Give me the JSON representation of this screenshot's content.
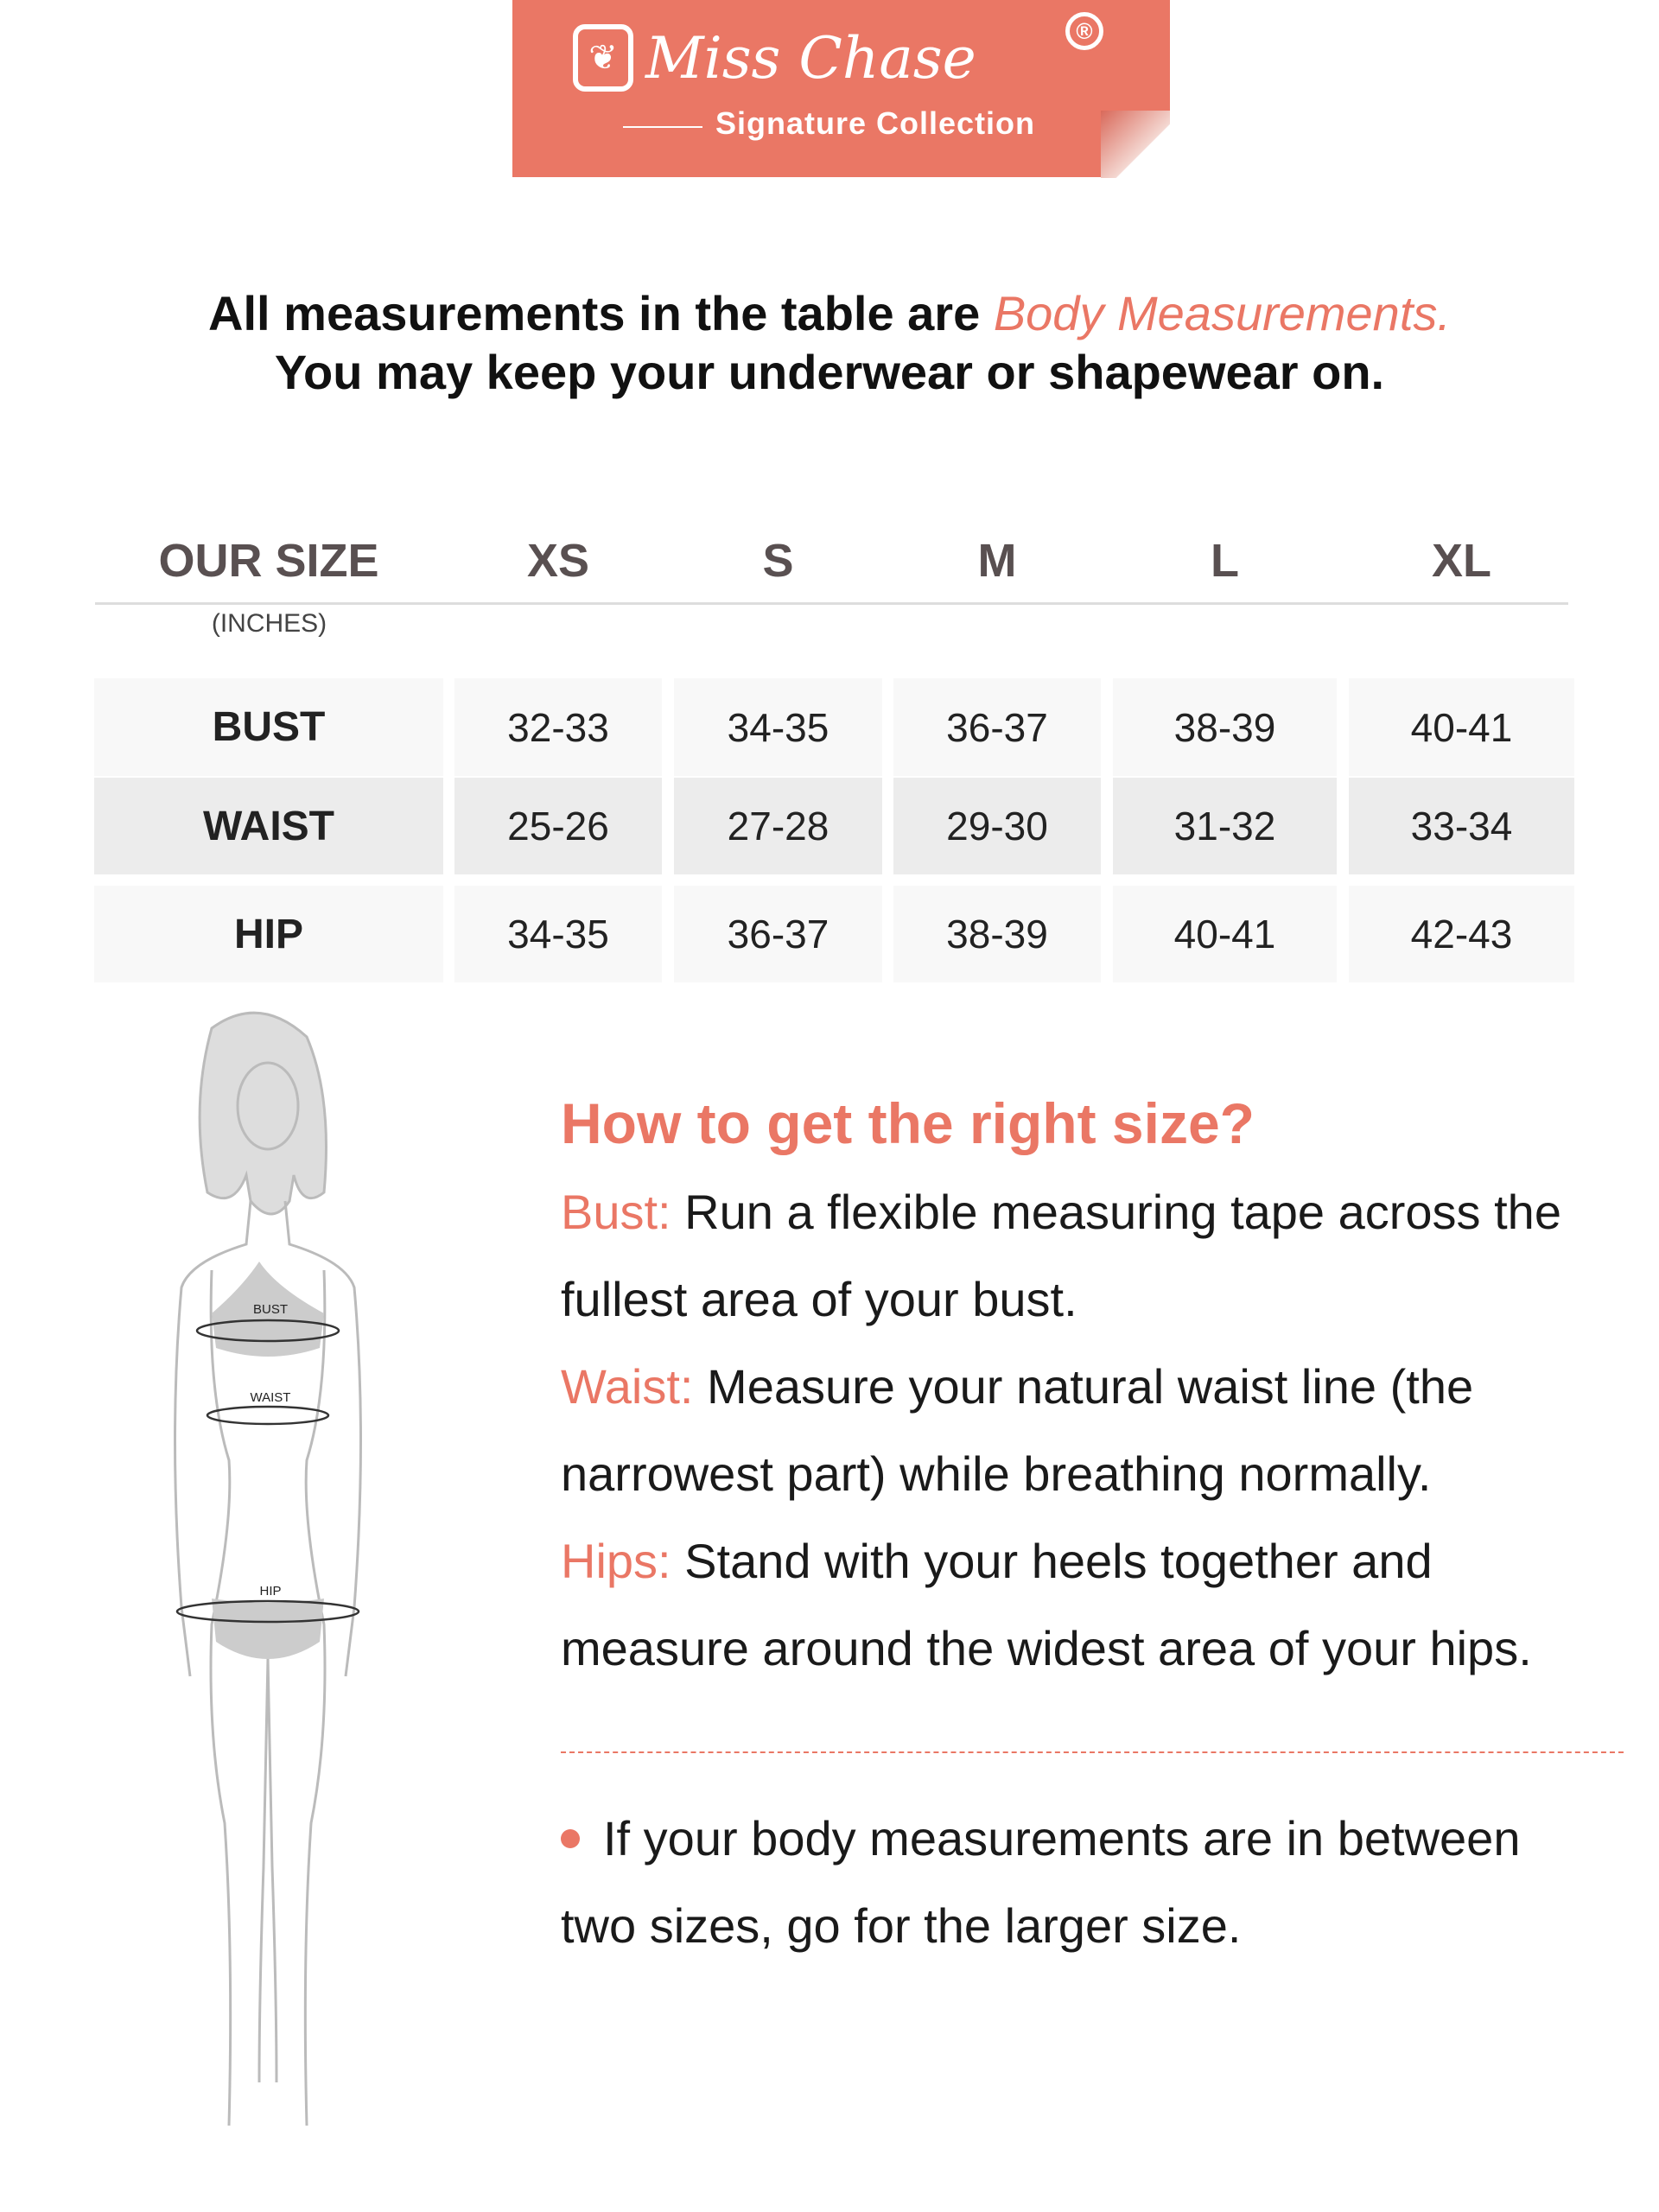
{
  "brand": {
    "name": "Miss Chase",
    "registered": "®",
    "collection": "Signature Collection",
    "color": "#ea7765"
  },
  "intro": {
    "line1_prefix": "All measurements in the table are ",
    "line1_highlight": "Body Measurements.",
    "line2": "You may keep your underwear or shapewear on."
  },
  "table": {
    "header": "OUR SIZE",
    "unit": "(INCHES)",
    "sizes": [
      "XS",
      "S",
      "M",
      "L",
      "XL"
    ],
    "rows": [
      {
        "label": "BUST",
        "values": [
          "32-33",
          "34-35",
          "36-37",
          "38-39",
          "40-41"
        ]
      },
      {
        "label": "WAIST",
        "values": [
          "25-26",
          "27-28",
          "29-30",
          "31-32",
          "33-34"
        ]
      },
      {
        "label": "HIP",
        "values": [
          "34-35",
          "36-37",
          "38-39",
          "40-41",
          "42-43"
        ]
      }
    ]
  },
  "figure": {
    "labels": [
      "BUST",
      "WAIST",
      "HIP"
    ]
  },
  "guide": {
    "title": "How to get the right size?",
    "items": [
      {
        "key": "Bust:",
        "line1": " Run a flexible measuring tape across the",
        "line2": "fullest area of your bust."
      },
      {
        "key": "Waist:",
        "line1": " Measure your natural waist line (the",
        "line2": "narrowest part) while breathing normally."
      },
      {
        "key": "Hips:",
        "line1": " Stand with your heels together and",
        "line2": "measure around the widest area of your hips."
      }
    ],
    "tip_line1": "If your body measurements are in between",
    "tip_line2": "two sizes, go for the larger size."
  }
}
